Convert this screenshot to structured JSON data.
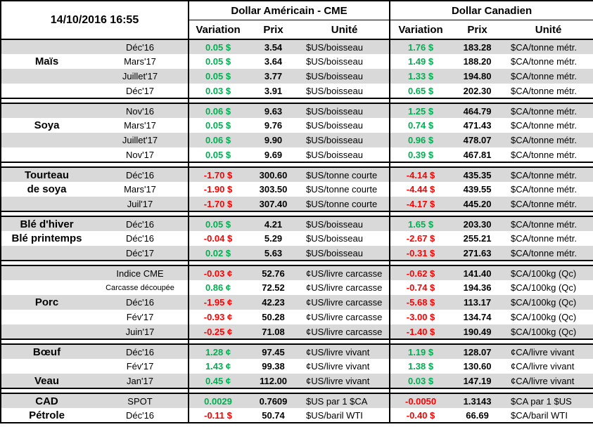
{
  "meta": {
    "timestamp": "14/10/2016 16:55"
  },
  "sections": {
    "us": {
      "title": "Dollar Américain - CME",
      "cols": [
        "Variation",
        "Prix",
        "Unité"
      ]
    },
    "ca": {
      "title": "Dollar Canadien",
      "cols": [
        "Variation",
        "Prix",
        "Unité"
      ]
    }
  },
  "colors": {
    "positive": "#00b050",
    "negative": "#ff0000",
    "stripe": "#d9d9d9"
  },
  "groups": [
    {
      "rows": [
        {
          "name": "",
          "month": "Déc'16",
          "us_var": "0.05 $",
          "us_prix": "3.54",
          "us_unit": "$US/boisseau",
          "ca_var": "1.76 $",
          "ca_prix": "183.28",
          "ca_unit": "$CA/tonne métr."
        },
        {
          "name": "Maïs",
          "month": "Mars'17",
          "us_var": "0.05 $",
          "us_prix": "3.64",
          "us_unit": "$US/boisseau",
          "ca_var": "1.49 $",
          "ca_prix": "188.20",
          "ca_unit": "$CA/tonne métr."
        },
        {
          "name": "",
          "month": "Juillet'17",
          "us_var": "0.05 $",
          "us_prix": "3.77",
          "us_unit": "$US/boisseau",
          "ca_var": "1.33 $",
          "ca_prix": "194.80",
          "ca_unit": "$CA/tonne métr."
        },
        {
          "name": "",
          "month": "Déc'17",
          "us_var": "0.03 $",
          "us_prix": "3.91",
          "us_unit": "$US/boisseau",
          "ca_var": "0.65 $",
          "ca_prix": "202.30",
          "ca_unit": "$CA/tonne métr."
        }
      ]
    },
    {
      "rows": [
        {
          "name": "",
          "month": "Nov'16",
          "us_var": "0.06 $",
          "us_prix": "9.63",
          "us_unit": "$US/boisseau",
          "ca_var": "1.25 $",
          "ca_prix": "464.79",
          "ca_unit": "$CA/tonne métr."
        },
        {
          "name": "Soya",
          "month": "Mars'17",
          "us_var": "0.05 $",
          "us_prix": "9.76",
          "us_unit": "$US/boisseau",
          "ca_var": "0.74 $",
          "ca_prix": "471.43",
          "ca_unit": "$CA/tonne métr."
        },
        {
          "name": "",
          "month": "Juillet'17",
          "us_var": "0.06 $",
          "us_prix": "9.90",
          "us_unit": "$US/boisseau",
          "ca_var": "0.96 $",
          "ca_prix": "478.07",
          "ca_unit": "$CA/tonne métr."
        },
        {
          "name": "",
          "month": "Nov'17",
          "us_var": "0.05 $",
          "us_prix": "9.69",
          "us_unit": "$US/boisseau",
          "ca_var": "0.39 $",
          "ca_prix": "467.81",
          "ca_unit": "$CA/tonne métr."
        }
      ]
    },
    {
      "rows": [
        {
          "name": "Tourteau",
          "month": "Déc'16",
          "us_var": "-1.70 $",
          "us_prix": "300.60",
          "us_unit": "$US/tonne courte",
          "ca_var": "-4.14 $",
          "ca_prix": "435.35",
          "ca_unit": "$CA/tonne métr."
        },
        {
          "name": "de soya",
          "month": "Mars'17",
          "us_var": "-1.90 $",
          "us_prix": "303.50",
          "us_unit": "$US/tonne courte",
          "ca_var": "-4.44 $",
          "ca_prix": "439.55",
          "ca_unit": "$CA/tonne métr."
        },
        {
          "name": "",
          "month": "Juil'17",
          "us_var": "-1.70 $",
          "us_prix": "307.40",
          "us_unit": "$US/tonne courte",
          "ca_var": "-4.17 $",
          "ca_prix": "445.20",
          "ca_unit": "$CA/tonne métr."
        }
      ]
    },
    {
      "rows": [
        {
          "name": "Blé d'hiver",
          "month": "Déc'16",
          "us_var": "0.05 $",
          "us_prix": "4.21",
          "us_unit": "$US/boisseau",
          "ca_var": "1.65 $",
          "ca_prix": "203.30",
          "ca_unit": "$CA/tonne métr."
        },
        {
          "name": "Blé printemps",
          "month": "Déc'16",
          "us_var": "-0.04 $",
          "us_prix": "5.29",
          "us_unit": "$US/boisseau",
          "ca_var": "-2.67 $",
          "ca_prix": "255.21",
          "ca_unit": "$CA/tonne métr."
        },
        {
          "name": "",
          "month": "Déc'17",
          "us_var": "0.02 $",
          "us_prix": "5.63",
          "us_unit": "$US/boisseau",
          "ca_var": "-0.31 $",
          "ca_prix": "271.63",
          "ca_unit": "$CA/tonne métr."
        }
      ]
    },
    {
      "rows": [
        {
          "name": "",
          "month": "Indice CME",
          "us_var": "-0.03 ¢",
          "us_prix": "52.76",
          "us_unit": "¢US/livre carcasse",
          "ca_var": "-0.62 $",
          "ca_prix": "141.40",
          "ca_unit": "$CA/100kg (Qc)"
        },
        {
          "name": "",
          "month": "Carcasse découpée",
          "us_var": "0.86 ¢",
          "us_prix": "72.52",
          "us_unit": "¢US/livre carcasse",
          "ca_var": "-0.74 $",
          "ca_prix": "194.36",
          "ca_unit": "$CA/100kg (Qc)"
        },
        {
          "name": "Porc",
          "month": "Déc'16",
          "us_var": "-1.95 ¢",
          "us_prix": "42.23",
          "us_unit": "¢US/livre carcasse",
          "ca_var": "-5.68 $",
          "ca_prix": "113.17",
          "ca_unit": "$CA/100kg (Qc)"
        },
        {
          "name": "",
          "month": "Fév'17",
          "us_var": "-0.93 ¢",
          "us_prix": "50.28",
          "us_unit": "¢US/livre carcasse",
          "ca_var": "-3.00 $",
          "ca_prix": "134.74",
          "ca_unit": "$CA/100kg (Qc)"
        },
        {
          "name": "",
          "month": "Juin'17",
          "us_var": "-0.25 ¢",
          "us_prix": "71.08",
          "us_unit": "¢US/livre carcasse",
          "ca_var": "-1.40 $",
          "ca_prix": "190.49",
          "ca_unit": "$CA/100kg (Qc)"
        }
      ]
    },
    {
      "rows": [
        {
          "name": "Bœuf",
          "month": "Déc'16",
          "us_var": "1.28 ¢",
          "us_prix": "97.45",
          "us_unit": "¢US/livre vivant",
          "ca_var": "1.19 $",
          "ca_prix": "128.07",
          "ca_unit": "¢CA/livre vivant"
        },
        {
          "name": "",
          "month": "Fév'17",
          "us_var": "1.43 ¢",
          "us_prix": "99.38",
          "us_unit": "¢US/livre vivant",
          "ca_var": "1.38 $",
          "ca_prix": "130.60",
          "ca_unit": "¢CA/livre vivant"
        },
        {
          "name": "Veau",
          "month": "Jan'17",
          "us_var": "0.45 ¢",
          "us_prix": "112.00",
          "us_unit": "¢US/livre vivant",
          "ca_var": "0.03 $",
          "ca_prix": "147.19",
          "ca_unit": "¢CA/livre vivant"
        }
      ]
    },
    {
      "rows": [
        {
          "name": "CAD",
          "month": "SPOT",
          "us_var": "0.0029",
          "us_prix": "0.7609",
          "us_unit": "$US par 1 $CA",
          "ca_var": "-0.0050",
          "ca_prix": "1.3143",
          "ca_unit": "$CA par 1 $US"
        },
        {
          "name": "Pétrole",
          "month": "Déc'16",
          "us_var": "-0.11 $",
          "us_prix": "50.74",
          "us_unit": "$US/baril WTI",
          "ca_var": "-0.40 $",
          "ca_prix": "66.69",
          "ca_unit": "$CA/baril WTI"
        }
      ]
    }
  ]
}
